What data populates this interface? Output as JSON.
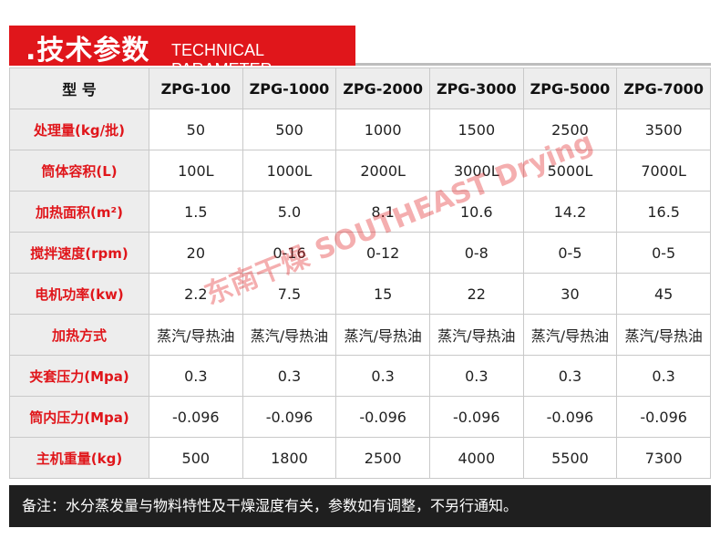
{
  "header": {
    "title": ".技术参数",
    "subtitle": "TECHNICAL PARAMETER"
  },
  "table": {
    "columns": [
      "型  号",
      "ZPG-100",
      "ZPG-1000",
      "ZPG-2000",
      "ZPG-3000",
      "ZPG-5000",
      "ZPG-7000"
    ],
    "rows": [
      [
        "处理量(kg/批)",
        "50",
        "500",
        "1000",
        "1500",
        "2500",
        "3500"
      ],
      [
        "筒体容积(L)",
        "100L",
        "1000L",
        "2000L",
        "3000L",
        "5000L",
        "7000L"
      ],
      [
        "加热面积(m²)",
        "1.5",
        "5.0",
        "8.1",
        "10.6",
        "14.2",
        "16.5"
      ],
      [
        "搅拌速度(rpm)",
        "20",
        "0-16",
        "0-12",
        "0-8",
        "0-5",
        "0-5"
      ],
      [
        "电机功率(kw)",
        "2.2",
        "7.5",
        "15",
        "22",
        "30",
        "45"
      ],
      [
        "加热方式",
        "蒸汽/导热油",
        "蒸汽/导热油",
        "蒸汽/导热油",
        "蒸汽/导热油",
        "蒸汽/导热油",
        "蒸汽/导热油"
      ],
      [
        "夹套压力(Mpa)",
        "0.3",
        "0.3",
        "0.3",
        "0.3",
        "0.3",
        "0.3"
      ],
      [
        "筒内压力(Mpa)",
        "-0.096",
        "-0.096",
        "-0.096",
        "-0.096",
        "-0.096",
        "-0.096"
      ],
      [
        "主机重量(kg)",
        "500",
        "1800",
        "2500",
        "4000",
        "5500",
        "7300"
      ]
    ]
  },
  "note": "备注：水分蒸发量与物料特性及干燥湿度有关，参数如有调整，不另行通知。",
  "watermark": "东南干燥 SOUTHEAST Drying"
}
